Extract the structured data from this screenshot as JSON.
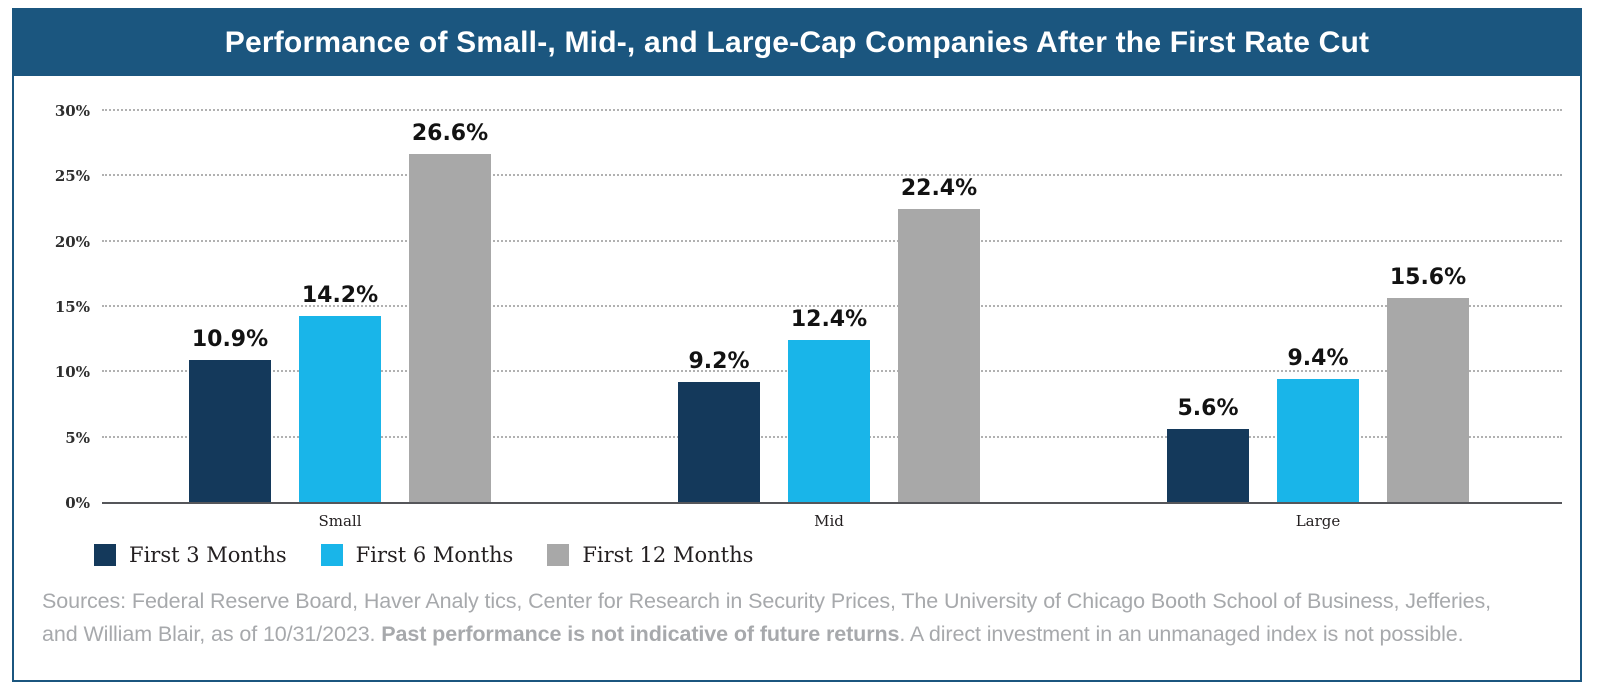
{
  "header": {
    "title": "Performance of Small-, Mid-, and Large-Cap Companies After the First Rate Cut",
    "bar_color": "#1B567F",
    "title_color": "#FFFFFF"
  },
  "chart_data": {
    "type": "bar",
    "title": "Performance of Small-, Mid-, and Large-Cap Companies After the First Rate Cut",
    "categories": [
      "Small",
      "Mid",
      "Large"
    ],
    "series": [
      {
        "name": "First 3 Months",
        "color": "#14395B",
        "values": [
          10.9,
          9.2,
          5.6
        ]
      },
      {
        "name": "First 6 Months",
        "color": "#19B5E9",
        "values": [
          14.2,
          12.4,
          9.4
        ]
      },
      {
        "name": "First 12 Months",
        "color": "#A8A8A8",
        "values": [
          26.6,
          22.4,
          15.6
        ]
      }
    ],
    "xlabel": "",
    "ylabel": "",
    "ylim": [
      0,
      30
    ],
    "yticks": [
      "0%",
      "5%",
      "10%",
      "15%",
      "20%",
      "25%",
      "30%"
    ],
    "grid": "horizontal-dotted",
    "gridline_color": "#B1B1B1",
    "axis_line_color": "#55565A",
    "value_label_suffix": "%",
    "legend_position": "bottom-left"
  },
  "footer": {
    "line1": "Sources: Federal Reserve Board, Haver Analy tics, Center for Research in Security Prices, The University of Chicago Booth School of Business, Jefferies,",
    "line2_prefix": "and William Blair, as of 10/31/2023. ",
    "line2_bold": "Past performance is not indicative of future returns",
    "line2_suffix": ". A direct investment in an unmanaged index is not possible.",
    "text_color": "#A7A9AC"
  }
}
